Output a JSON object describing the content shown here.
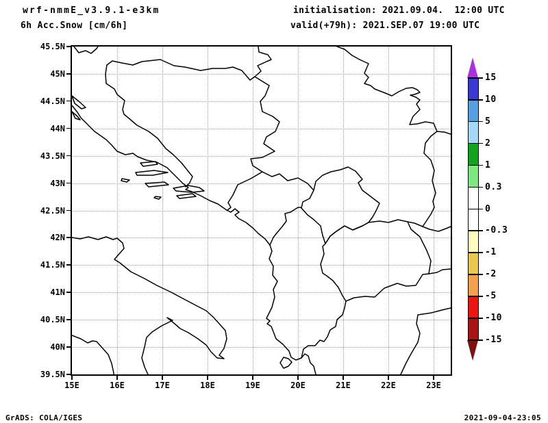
{
  "title": {
    "model": "wrf-nmmE_v3.9.1-e3km",
    "field": "6h Acc.Snow [cm/6h]",
    "init": "initialisation: 2021.09.04.  12:00 UTC",
    "valid": "valid(+79h): 2021.SEP.07 19:00 UTC"
  },
  "footer": {
    "left": "GrADS: COLA/IGES",
    "right": "2021-09-04-23:05"
  },
  "axes": {
    "lat_labels": [
      "45.5N",
      "45N",
      "44.5N",
      "44N",
      "43.5N",
      "43N",
      "42.5N",
      "42N",
      "41.5N",
      "41N",
      "40.5N",
      "40N",
      "39.5N"
    ],
    "lon_labels": [
      "15E",
      "16E",
      "17E",
      "18E",
      "19E",
      "20E",
      "21E",
      "22E",
      "23E"
    ]
  },
  "colorbar": {
    "levels": [
      "15",
      "10",
      "5",
      "2",
      "1",
      "0.3",
      "0",
      "-0.3",
      "-1",
      "-2",
      "-5",
      "-10",
      "-15"
    ],
    "segment_colors": [
      "#3a3ad2",
      "#55a0e0",
      "#a5d8f5",
      "#12a41c",
      "#7de87d",
      "#ffffff",
      "#ffffff",
      "#fffdc0",
      "#e8c84e",
      "#f4a14e",
      "#eb1511",
      "#a81414"
    ],
    "arrow_top_color": "#a832e0",
    "arrow_bottom_color": "#7d1111"
  },
  "map_extent": {
    "lat_min": "39.5N",
    "lat_max": "45.5N",
    "lon_min": "15E",
    "lon_max": "23E"
  }
}
